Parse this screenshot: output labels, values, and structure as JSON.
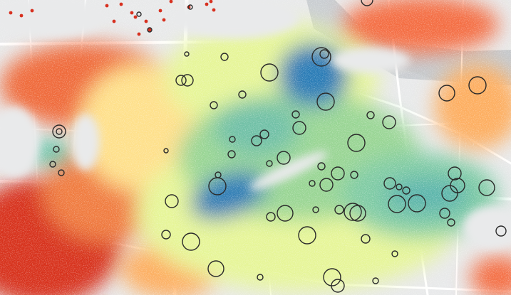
{
  "map": {
    "type": "heatmap-overlay",
    "base_colors": {
      "background": "#e8e9ea",
      "road": "#ffffff",
      "water": "#c9cdd1",
      "block": "#dcdddf"
    },
    "color_scale": {
      "low": "#d7301f",
      "mid_low": "#fc8d59",
      "mid": "#fee08b",
      "mid_high": "#d9ef8b",
      "high_a": "#66c2a5",
      "high_b": "#3288bd",
      "peak": "#2166ac"
    },
    "circle_markers": {
      "stroke": "#2a2a2a",
      "fill": "none"
    }
  }
}
